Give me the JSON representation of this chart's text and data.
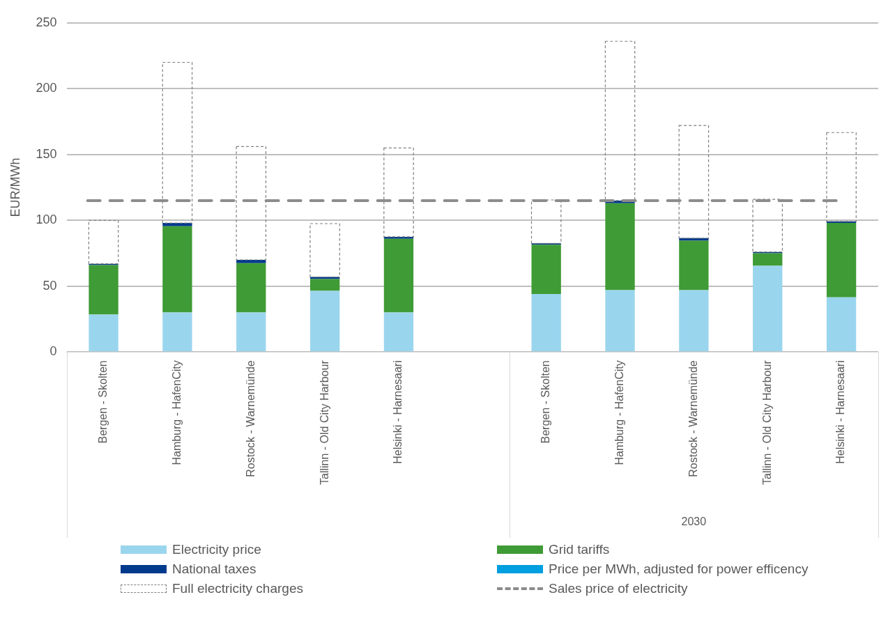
{
  "chart_data": {
    "type": "bar",
    "stacked": true,
    "ylabel": "EUR/MWh",
    "categories": [
      "Bergen - Skolten",
      "Hamburg - HafenCity",
      "Rostock - Warnemünde",
      "Tallinn - Old City Harbour",
      "Helsinki - Harnesaari",
      null,
      "Bergen - Skolten",
      "Hamburg - HafenCity",
      "Rostock - Warnemünde",
      "Tallinn - Old City Harbour",
      "Helsinki - Harnesaari"
    ],
    "series": [
      {
        "name": "Electricity price",
        "color": "#9ad5ee",
        "values": [
          28.5,
          30,
          30,
          46.5,
          30,
          null,
          44,
          47,
          47,
          65.5,
          41.5
        ]
      },
      {
        "name": "Grid tariffs",
        "color": "#3f9b35",
        "values": [
          37.5,
          65.5,
          37.5,
          9,
          56,
          null,
          37.5,
          66,
          37.5,
          9.5,
          56.5
        ]
      },
      {
        "name": "National taxes",
        "color": "#003a8c",
        "values": [
          1,
          2.5,
          2.5,
          1.5,
          1.5,
          null,
          1,
          2,
          2,
          1,
          1.2
        ]
      },
      {
        "name": "Price per MWh, adjusted for power efficency",
        "color": "#009fdf",
        "values": [
          null,
          null,
          null,
          null,
          null,
          null,
          null,
          null,
          null,
          null,
          null
        ]
      },
      {
        "name": "Full electricity charges",
        "color": "#808080",
        "line_style": "dashed",
        "values": [
          33,
          122,
          86,
          40.5,
          67.5,
          null,
          33,
          121,
          85.5,
          40,
          67.5
        ]
      }
    ],
    "ref_lines": [
      {
        "axis": "y",
        "value": 115,
        "label": "Sales price of electricity",
        "color": "#8c8c8c",
        "line_style": "dashed"
      }
    ],
    "annotations": [
      "2030"
    ],
    "ylim": [
      0,
      250
    ],
    "yticks": [
      0,
      50,
      100,
      150,
      200,
      250
    ],
    "grid": "y",
    "legend": "bottom"
  }
}
